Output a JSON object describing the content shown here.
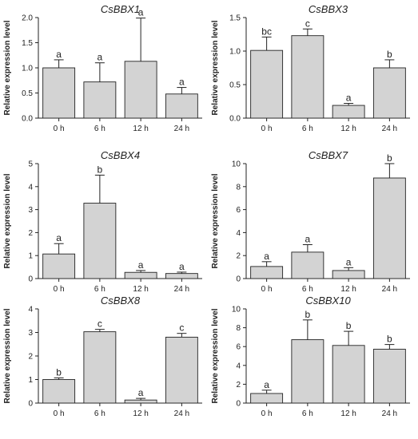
{
  "chart_data": [
    {
      "type": "bar",
      "title": "CsBBX1",
      "ylabel": "Relative expression level",
      "categories": [
        "0 h",
        "6 h",
        "12 h",
        "24 h"
      ],
      "values": [
        1.0,
        0.72,
        1.13,
        0.48
      ],
      "errors": [
        0.16,
        0.38,
        0.86,
        0.13
      ],
      "letters": [
        "a",
        "a",
        "a",
        "a"
      ],
      "ylim": [
        0,
        2.0
      ],
      "yticks": [
        "0.0",
        "0.5",
        "1.0",
        "1.5",
        "2.0"
      ]
    },
    {
      "type": "bar",
      "title": "CsBBX3",
      "ylabel": "Relative expression level",
      "categories": [
        "0 h",
        "6 h",
        "12 h",
        "24 h"
      ],
      "values": [
        1.01,
        1.23,
        0.19,
        0.75
      ],
      "errors": [
        0.2,
        0.1,
        0.03,
        0.12
      ],
      "letters": [
        "bc",
        "c",
        "a",
        "b"
      ],
      "ylim": [
        0,
        1.5
      ],
      "yticks": [
        "0.0",
        "0.5",
        "1.0",
        "1.5"
      ]
    },
    {
      "type": "bar",
      "title": "CsBBX4",
      "ylabel": "Relative expression level",
      "categories": [
        "0 h",
        "6 h",
        "12 h",
        "24 h"
      ],
      "values": [
        1.07,
        3.28,
        0.27,
        0.22
      ],
      "errors": [
        0.45,
        1.22,
        0.08,
        0.06
      ],
      "letters": [
        "a",
        "b",
        "a",
        "a"
      ],
      "ylim": [
        0,
        5
      ],
      "yticks": [
        "0",
        "1",
        "2",
        "3",
        "4",
        "5"
      ]
    },
    {
      "type": "bar",
      "title": "CsBBX7",
      "ylabel": "Relative expression level",
      "categories": [
        "0 h",
        "6 h",
        "12 h",
        "24 h"
      ],
      "values": [
        1.05,
        2.3,
        0.7,
        8.75
      ],
      "errors": [
        0.42,
        0.65,
        0.25,
        1.25
      ],
      "letters": [
        "a",
        "a",
        "a",
        "b"
      ],
      "ylim": [
        0,
        10
      ],
      "yticks": [
        "0",
        "2",
        "4",
        "6",
        "8",
        "10"
      ]
    },
    {
      "type": "bar",
      "title": "CsBBX8",
      "ylabel": "Relative expression level",
      "categories": [
        "0 h",
        "6 h",
        "12 h",
        "24 h"
      ],
      "values": [
        1.0,
        3.03,
        0.13,
        2.8
      ],
      "errors": [
        0.07,
        0.1,
        0.07,
        0.16
      ],
      "letters": [
        "b",
        "c",
        "a",
        "c"
      ],
      "ylim": [
        0,
        4
      ],
      "yticks": [
        "0",
        "1",
        "2",
        "3",
        "4"
      ]
    },
    {
      "type": "bar",
      "title": "CsBBX10",
      "ylabel": "Relative expression level",
      "categories": [
        "0 h",
        "6 h",
        "12 h",
        "24 h"
      ],
      "values": [
        1.02,
        6.73,
        6.12,
        5.72
      ],
      "errors": [
        0.35,
        2.1,
        1.5,
        0.5
      ],
      "letters": [
        "a",
        "b",
        "b",
        "b"
      ],
      "ylim": [
        0,
        10
      ],
      "yticks": [
        "0",
        "2",
        "4",
        "6",
        "8",
        "10"
      ]
    }
  ]
}
